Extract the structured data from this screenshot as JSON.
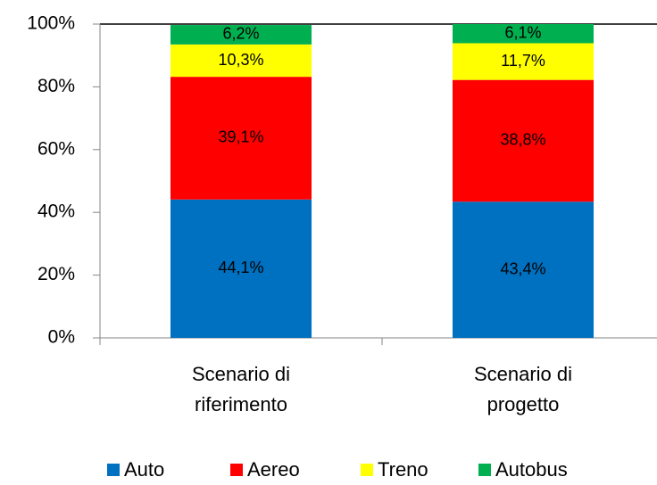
{
  "chart_data": {
    "type": "stacked_bar",
    "categories": [
      "Scenario di riferimento",
      "Scenario di progetto"
    ],
    "series": [
      {
        "name": "Auto",
        "color": "#0070c0",
        "values": [
          44.1,
          43.4
        ],
        "value_labels": [
          "44,1%",
          "43,4%"
        ]
      },
      {
        "name": "Aereo",
        "color": "#ff0000",
        "values": [
          39.1,
          38.8
        ],
        "value_labels": [
          "39,1%",
          "38,8%"
        ]
      },
      {
        "name": "Treno",
        "color": "#ffff00",
        "values": [
          10.3,
          11.7
        ],
        "value_labels": [
          "10,3%",
          "11,7%"
        ]
      },
      {
        "name": "Autobus",
        "color": "#00b050",
        "values": [
          6.2,
          6.1
        ],
        "value_labels": [
          "6,2%",
          "6,1%"
        ]
      }
    ],
    "ylim": [
      0,
      100
    ],
    "yticks": [
      {
        "value": 0,
        "label": "0%"
      },
      {
        "value": 20,
        "label": "20%"
      },
      {
        "value": 40,
        "label": "40%"
      },
      {
        "value": 60,
        "label": "60%"
      },
      {
        "value": 80,
        "label": "80%"
      },
      {
        "value": 100,
        "label": "100%"
      }
    ],
    "grid": false,
    "legend": "bottom"
  }
}
